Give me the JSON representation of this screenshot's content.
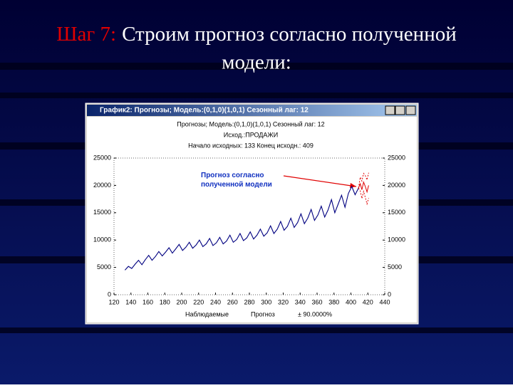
{
  "slide": {
    "title_step": "Шаг 7:",
    "title_text": "Строим прогноз согласно полученной модели:"
  },
  "window": {
    "title": "График2: Прогнозы; Модель:(0,1,0)(1,0,1) Сезонный лаг: 12"
  },
  "chart_data": {
    "type": "line",
    "title": "Прогнозы; Модель:(0,1,0)(1,0,1) Сезонный лаг: 12",
    "subtitle": "Исход.:ПРОДАЖИ",
    "note": "Начало исходных: 133 Конец исходн.: 409",
    "annotation": "Прогноз согласно полученной модели",
    "xlim": [
      120,
      440
    ],
    "xticks": [
      120,
      140,
      160,
      180,
      200,
      220,
      240,
      260,
      280,
      300,
      320,
      340,
      360,
      380,
      400,
      420,
      440
    ],
    "ylim": [
      0,
      25000
    ],
    "yticks": [
      0,
      5000,
      10000,
      15000,
      20000,
      25000
    ],
    "y2lim": [
      0,
      25000
    ],
    "y2ticks": [
      0,
      5000,
      10000,
      15000,
      20000,
      25000
    ],
    "grid": false,
    "series": [
      {
        "name": "Наблюдаемые",
        "color": "#000080",
        "x": [
          133,
          137,
          141,
          145,
          149,
          153,
          157,
          161,
          165,
          169,
          173,
          177,
          181,
          185,
          189,
          193,
          197,
          201,
          205,
          209,
          213,
          217,
          221,
          225,
          229,
          233,
          237,
          241,
          245,
          249,
          253,
          257,
          261,
          265,
          269,
          273,
          277,
          281,
          285,
          289,
          293,
          297,
          301,
          305,
          309,
          313,
          317,
          321,
          325,
          329,
          333,
          337,
          341,
          345,
          349,
          353,
          357,
          361,
          365,
          369,
          373,
          377,
          381,
          385,
          389,
          393,
          397,
          401,
          405,
          409
        ],
        "values": [
          4500,
          5200,
          4800,
          5600,
          6300,
          5500,
          6400,
          7200,
          6300,
          7000,
          7900,
          7100,
          7800,
          8600,
          7600,
          8400,
          9200,
          8100,
          8700,
          9600,
          8500,
          9100,
          10000,
          8800,
          9300,
          10300,
          9000,
          9500,
          10500,
          9300,
          9800,
          10900,
          9600,
          10100,
          11200,
          9900,
          10400,
          11500,
          10200,
          10900,
          12000,
          10700,
          11300,
          12600,
          11200,
          12000,
          13400,
          11800,
          12500,
          14000,
          12300,
          13200,
          14800,
          13000,
          14000,
          15600,
          13600,
          14600,
          16200,
          14200,
          15500,
          17400,
          15000,
          16600,
          18200,
          16000,
          18500,
          19800,
          18300,
          19500
        ]
      },
      {
        "name": "Прогноз",
        "color": "#e00000",
        "x": [
          409,
          411,
          413,
          415,
          417,
          419,
          421
        ],
        "values": [
          19500,
          20300,
          19200,
          20600,
          19800,
          18800,
          20000
        ]
      },
      {
        "name": "± 90.0000%",
        "color": "#e00000",
        "x": [
          409,
          411,
          413,
          415,
          417,
          419,
          421
        ],
        "values": [
          19500,
          19000,
          17600,
          18900,
          17800,
          16600,
          17700
        ],
        "upper": [
          19500,
          21500,
          20800,
          22200,
          21800,
          21000,
          22300
        ]
      }
    ]
  }
}
